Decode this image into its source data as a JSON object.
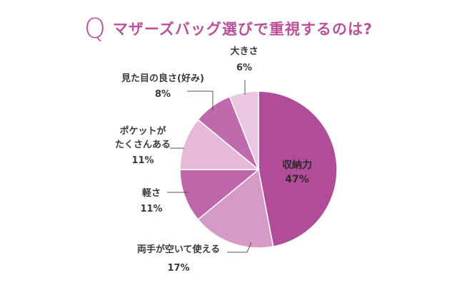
{
  "header": {
    "q_mark": "Q",
    "question": "マザーズバッグ選びで重視するのは?"
  },
  "colors": {
    "accent": "#b9529a"
  },
  "chart_data": {
    "type": "pie",
    "title": "マザーズバッグ選びで重視するのは?",
    "start": "12 o'clock, clockwise",
    "slices": [
      {
        "label": "収納力",
        "value": 47,
        "pct_label": "47%",
        "color": "#b14c99"
      },
      {
        "label": "両手が空いて使える",
        "value": 17,
        "pct_label": "17%",
        "color": "#d69ac6"
      },
      {
        "label": "軽さ",
        "value": 11,
        "pct_label": "11%",
        "color": "#bf66aa"
      },
      {
        "label": "ポケットがたくさんある",
        "label_lines": [
          "ポケットが",
          "たくさんある"
        ],
        "value": 11,
        "pct_label": "11%",
        "color": "#e6b8da"
      },
      {
        "label": "見た目の良さ(好み)",
        "value": 8,
        "pct_label": "8%",
        "color": "#c06aae"
      },
      {
        "label": "大きさ",
        "value": 6,
        "pct_label": "6%",
        "color": "#ebc8e2"
      }
    ]
  }
}
